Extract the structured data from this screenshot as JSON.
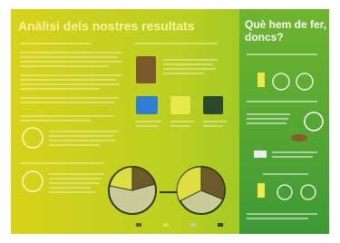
{
  "header": {
    "title": "Anàlisi dels nostres resultats"
  },
  "sidebar": {
    "title_line1": "Què hem de fer,",
    "title_line2": "doncs?"
  }
}
